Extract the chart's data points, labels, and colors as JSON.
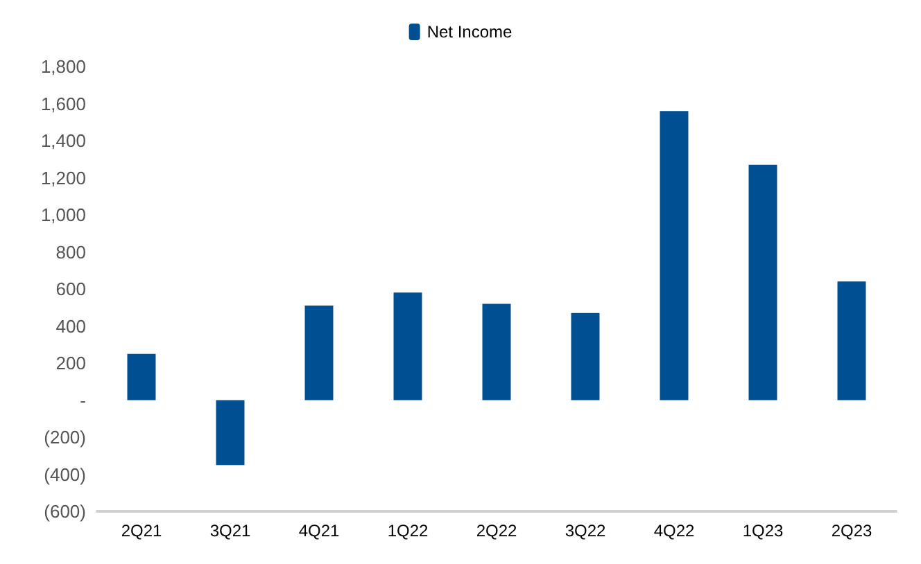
{
  "chart_data": {
    "type": "bar",
    "categories": [
      "2Q21",
      "3Q21",
      "4Q21",
      "1Q22",
      "2Q22",
      "3Q22",
      "4Q22",
      "1Q23",
      "2Q23"
    ],
    "series": [
      {
        "name": "Net Income",
        "color": "#004f93",
        "values": [
          250,
          -350,
          510,
          580,
          520,
          470,
          1560,
          1270,
          640
        ]
      }
    ],
    "ylim": [
      -600,
      1800
    ],
    "yticks": [
      {
        "value": -600,
        "label": "(600)"
      },
      {
        "value": -400,
        "label": "(400)"
      },
      {
        "value": -200,
        "label": "(200)"
      },
      {
        "value": 0,
        "label": "-"
      },
      200,
      400,
      600,
      800,
      {
        "value": 1000,
        "label": "1,000"
      },
      {
        "value": 1200,
        "label": "1,200"
      },
      {
        "value": 1400,
        "label": "1,400"
      },
      {
        "value": 1600,
        "label": "1,600"
      },
      {
        "value": 1800,
        "label": "1,800"
      }
    ],
    "grid": false,
    "legend": "top"
  }
}
